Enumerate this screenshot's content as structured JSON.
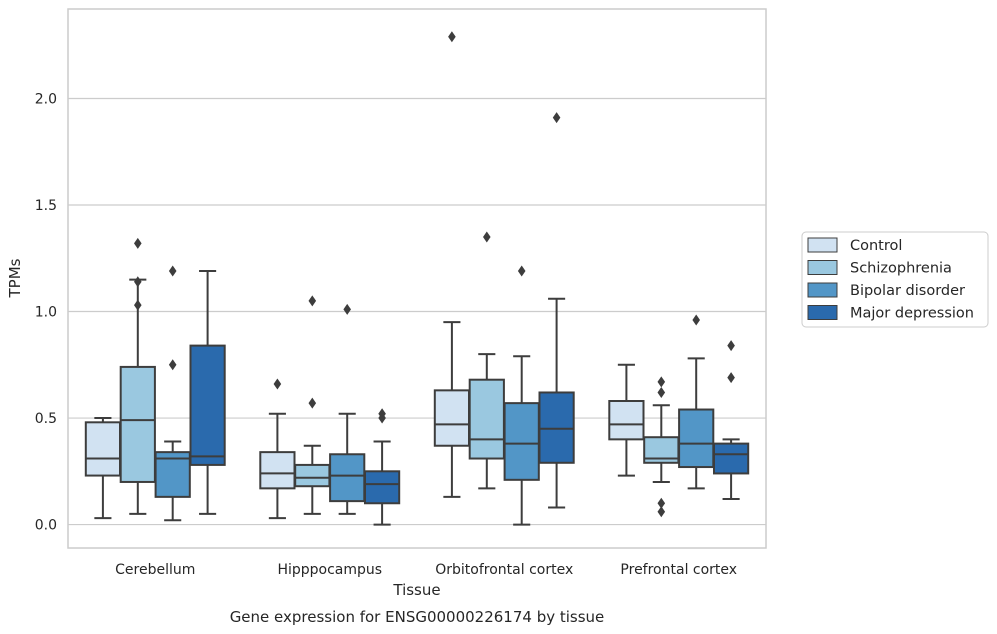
{
  "chart_data": {
    "type": "box",
    "title": "Gene expression for ENSG00000226174 by tissue",
    "xlabel": "Tissue",
    "ylabel": "TPMs",
    "ylim": [
      -0.11,
      2.42
    ],
    "yticks": [
      "0.0",
      "0.5",
      "1.0",
      "1.5",
      "2.0"
    ],
    "ytick_values": [
      0.0,
      0.5,
      1.0,
      1.5,
      2.0
    ],
    "grid": true,
    "legend_position": "right",
    "categories": [
      "Cerebellum",
      "Hipppocampus",
      "Orbitofrontal cortex",
      "Prefrontal cortex"
    ],
    "series": [
      {
        "name": "Control",
        "color": "#d1e2f2",
        "boxes": [
          {
            "whislo": 0.03,
            "q1": 0.23,
            "med": 0.31,
            "q3": 0.48,
            "whishi": 0.5,
            "fliers": []
          },
          {
            "whislo": 0.03,
            "q1": 0.17,
            "med": 0.24,
            "q3": 0.34,
            "whishi": 0.52,
            "fliers": [
              0.66
            ]
          },
          {
            "whislo": 0.13,
            "q1": 0.37,
            "med": 0.47,
            "q3": 0.63,
            "whishi": 0.95,
            "fliers": [
              2.29
            ]
          },
          {
            "whislo": 0.23,
            "q1": 0.4,
            "med": 0.47,
            "q3": 0.58,
            "whishi": 0.75,
            "fliers": []
          }
        ]
      },
      {
        "name": "Schizophrenia",
        "color": "#9ac8e0",
        "boxes": [
          {
            "whislo": 0.05,
            "q1": 0.2,
            "med": 0.49,
            "q3": 0.74,
            "whishi": 1.15,
            "fliers": [
              1.32,
              1.14,
              1.03
            ]
          },
          {
            "whislo": 0.05,
            "q1": 0.18,
            "med": 0.22,
            "q3": 0.28,
            "whishi": 0.37,
            "fliers": [
              1.05,
              0.57
            ]
          },
          {
            "whislo": 0.17,
            "q1": 0.31,
            "med": 0.4,
            "q3": 0.68,
            "whishi": 0.8,
            "fliers": [
              1.35
            ]
          },
          {
            "whislo": 0.2,
            "q1": 0.29,
            "med": 0.31,
            "q3": 0.41,
            "whishi": 0.56,
            "fliers": [
              0.67,
              0.62,
              0.1,
              0.06
            ]
          }
        ]
      },
      {
        "name": "Bipolar disorder",
        "color": "#5296c7",
        "boxes": [
          {
            "whislo": 0.02,
            "q1": 0.13,
            "med": 0.31,
            "q3": 0.34,
            "whishi": 0.39,
            "fliers": [
              1.19,
              0.75
            ]
          },
          {
            "whislo": 0.05,
            "q1": 0.11,
            "med": 0.23,
            "q3": 0.33,
            "whishi": 0.52,
            "fliers": [
              1.01
            ]
          },
          {
            "whislo": 0.0,
            "q1": 0.21,
            "med": 0.38,
            "q3": 0.57,
            "whishi": 0.79,
            "fliers": [
              1.19
            ]
          },
          {
            "whislo": 0.17,
            "q1": 0.27,
            "med": 0.38,
            "q3": 0.54,
            "whishi": 0.78,
            "fliers": [
              0.96
            ]
          }
        ]
      },
      {
        "name": "Major depression",
        "color": "#2a6aad",
        "boxes": [
          {
            "whislo": 0.05,
            "q1": 0.28,
            "med": 0.32,
            "q3": 0.84,
            "whishi": 1.19,
            "fliers": []
          },
          {
            "whislo": 0.0,
            "q1": 0.1,
            "med": 0.19,
            "q3": 0.25,
            "whishi": 0.39,
            "fliers": [
              0.52,
              0.5
            ]
          },
          {
            "whislo": 0.08,
            "q1": 0.29,
            "med": 0.45,
            "q3": 0.62,
            "whishi": 1.06,
            "fliers": [
              1.91
            ]
          },
          {
            "whislo": 0.12,
            "q1": 0.24,
            "med": 0.33,
            "q3": 0.38,
            "whishi": 0.4,
            "fliers": [
              0.84,
              0.69
            ]
          }
        ]
      }
    ],
    "style": {
      "grid_color": "#cccccc",
      "frame_color": "#cccccc",
      "line_color": "#3d3d3d",
      "flier_color": "#3d3d3d"
    }
  }
}
